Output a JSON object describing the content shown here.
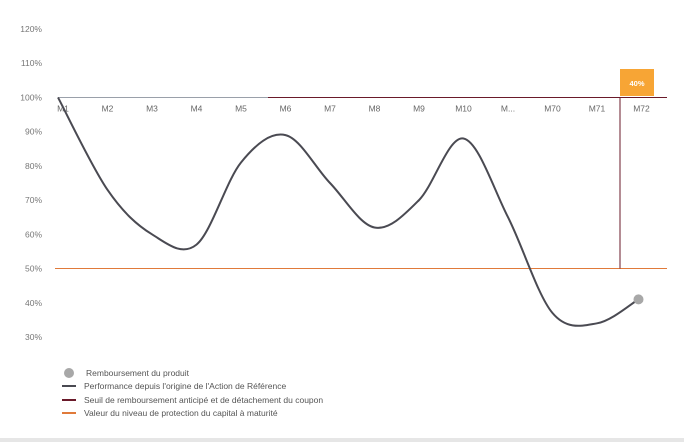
{
  "chart_data": {
    "type": "line",
    "y_ticks": [
      "120%",
      "110%",
      "100%",
      "90%",
      "80%",
      "70%",
      "60%",
      "50%",
      "40%",
      "30%"
    ],
    "y_tick_values": [
      120,
      110,
      100,
      90,
      80,
      70,
      60,
      50,
      40,
      30
    ],
    "ylim": [
      30,
      120
    ],
    "categories": [
      "M1",
      "M2",
      "M3",
      "M4",
      "M5",
      "M6",
      "M7",
      "M8",
      "M9",
      "M10",
      "M...",
      "M70",
      "M71",
      "M72"
    ],
    "series": [
      {
        "name": "Performance depuis l'origine de l'Action de Référence",
        "color": "#4a4a52",
        "x": [
          "M1",
          "M2",
          "M3",
          "M4",
          "M5",
          "M6",
          "M7",
          "M8",
          "M9",
          "M10",
          "M...",
          "M70",
          "M71",
          "M72"
        ],
        "values": [
          100,
          73,
          60,
          57,
          81,
          89,
          75,
          62,
          70,
          88,
          65,
          37,
          34,
          41
        ]
      }
    ],
    "autocall_threshold": {
      "label": "Seuil de remboursement anticipé et de détachement du coupon",
      "value": 100,
      "color": "#6a1a2a"
    },
    "protection_level": {
      "label": "Valeur du niveau de protection du capital à maturité",
      "value": 50,
      "color": "#e07a3a"
    },
    "repayment": {
      "label": "Remboursement du produit",
      "x": "M72",
      "value": 41,
      "color": "#a8a8a8"
    },
    "final_badge": {
      "text": "40%",
      "color": "#f7a535"
    }
  },
  "legend": {
    "items": [
      {
        "label": "Remboursement du produit",
        "kind": "dot",
        "color": "#a8a8a8"
      },
      {
        "label": "Performance depuis l'origine de l'Action de Référence",
        "kind": "line",
        "color": "#4a4a52"
      },
      {
        "label": "Seuil de remboursement anticipé et de détachement du coupon",
        "kind": "line",
        "color": "#6a1a2a"
      },
      {
        "label": "Valeur du niveau de protection du capital à maturité",
        "kind": "line",
        "color": "#e07a3a"
      }
    ]
  }
}
